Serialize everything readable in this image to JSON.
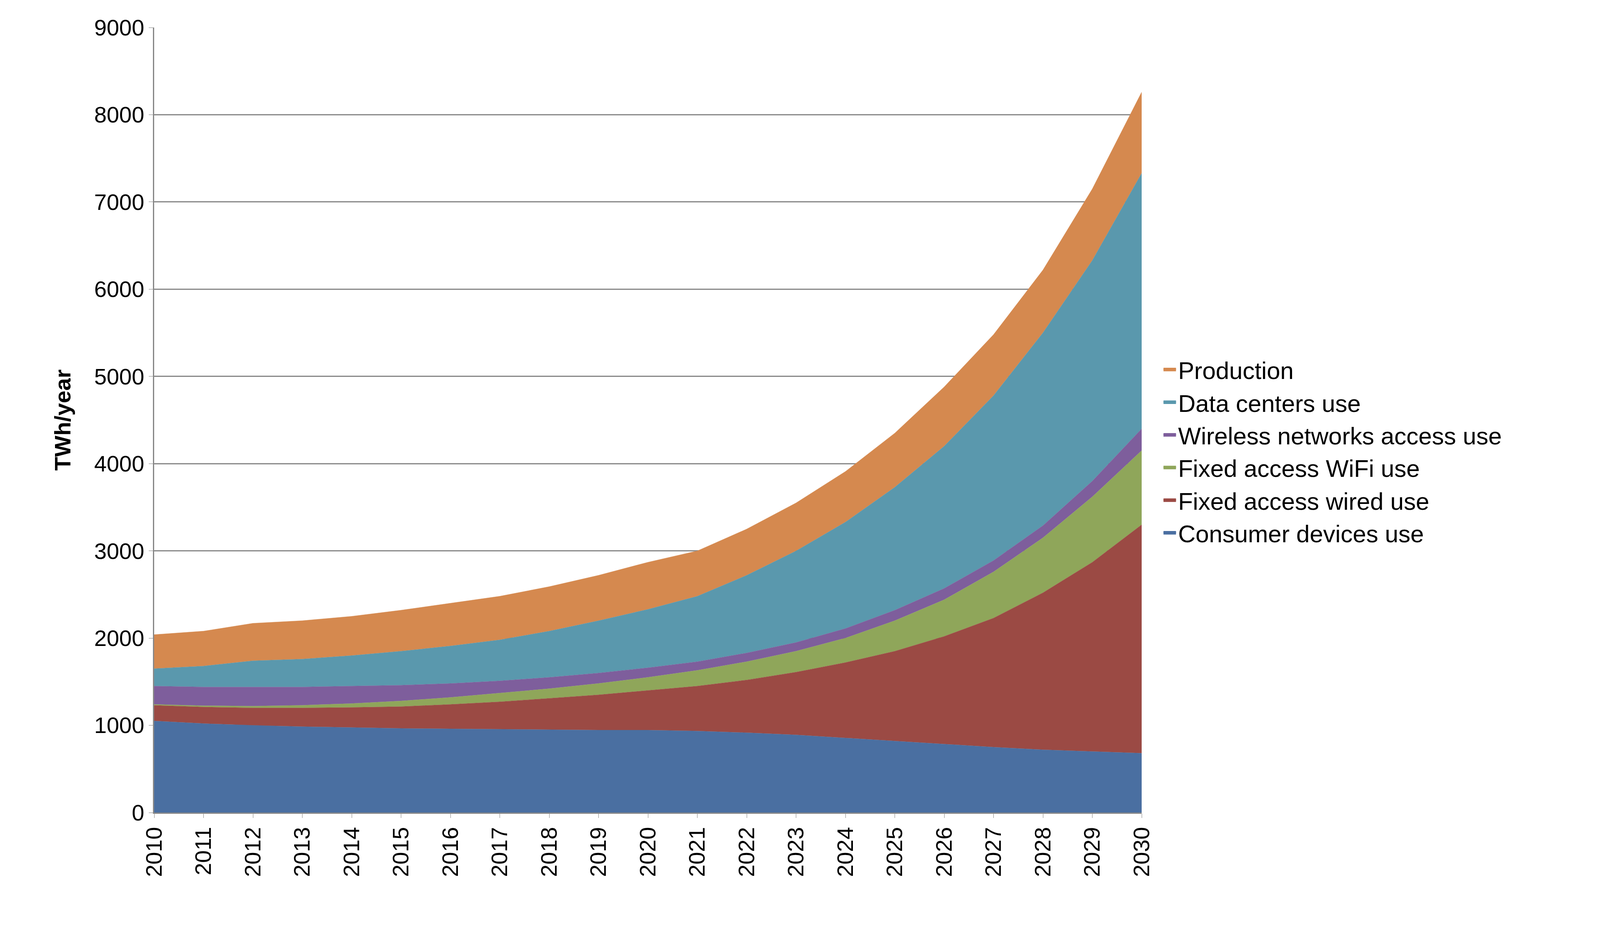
{
  "chart_data": {
    "type": "area",
    "stacked": true,
    "y_label": "TWh/year",
    "categories": [
      "2010",
      "2011",
      "2012",
      "2013",
      "2014",
      "2015",
      "2016",
      "2017",
      "2018",
      "2019",
      "2020",
      "2021",
      "2022",
      "2023",
      "2024",
      "2025",
      "2026",
      "2027",
      "2028",
      "2029",
      "2030"
    ],
    "ylim": [
      0,
      9000
    ],
    "yticks": [
      0,
      1000,
      2000,
      3000,
      4000,
      5000,
      6000,
      7000,
      8000,
      9000
    ],
    "grid": true,
    "legend": "right",
    "series": [
      {
        "name": "Consumer devices use",
        "color": "#4a6fa1",
        "values": [
          1050,
          1020,
          1000,
          985,
          975,
          965,
          960,
          955,
          950,
          945,
          945,
          935,
          915,
          890,
          855,
          820,
          785,
          750,
          720,
          700,
          680
        ]
      },
      {
        "name": "Fixed access wired use",
        "color": "#9b4a44",
        "values": [
          180,
          190,
          200,
          215,
          230,
          250,
          280,
          315,
          360,
          405,
          455,
          515,
          605,
          720,
          865,
          1030,
          1235,
          1480,
          1800,
          2170,
          2620
        ]
      },
      {
        "name": "Fixed access WiFi use",
        "color": "#8fa65a",
        "values": [
          10,
          15,
          20,
          30,
          45,
          65,
          80,
          100,
          110,
          130,
          150,
          180,
          210,
          240,
          280,
          350,
          420,
          530,
          630,
          750,
          850
        ]
      },
      {
        "name": "Wireless networks access use",
        "color": "#7e5e9c",
        "values": [
          210,
          215,
          220,
          210,
          200,
          180,
          160,
          140,
          130,
          120,
          110,
          100,
          100,
          100,
          110,
          120,
          130,
          130,
          140,
          180,
          250
        ]
      },
      {
        "name": "Data centers use",
        "color": "#5a98ad",
        "values": [
          200,
          240,
          300,
          320,
          350,
          390,
          430,
          470,
          530,
          600,
          670,
          750,
          890,
          1050,
          1220,
          1410,
          1630,
          1890,
          2210,
          2530,
          2930
        ]
      },
      {
        "name": "Production",
        "color": "#d5894f",
        "values": [
          390,
          400,
          430,
          440,
          450,
          470,
          490,
          500,
          510,
          520,
          540,
          520,
          530,
          550,
          580,
          620,
          680,
          700,
          720,
          820,
          930
        ]
      }
    ]
  }
}
